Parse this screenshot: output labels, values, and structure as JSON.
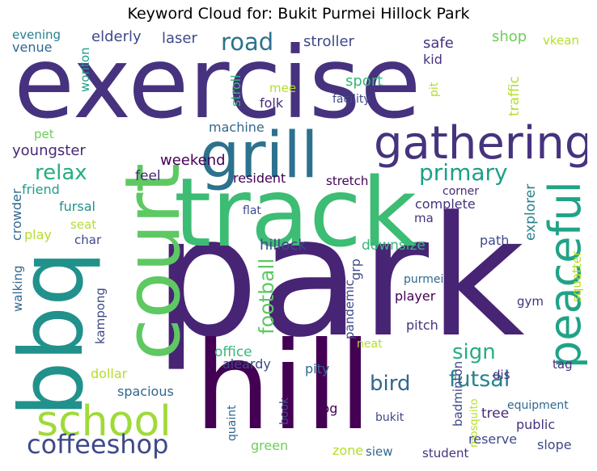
{
  "title": "Keyword Cloud for: Bukit Purmei Hillock Park",
  "palette": [
    "#440154",
    "#482878",
    "#3e4989",
    "#31688e",
    "#26828e",
    "#1f9e89",
    "#35b779",
    "#6ece58",
    "#b5de2b",
    "#fde725"
  ],
  "words": {
    "exercise": "exercise",
    "park": "park",
    "track": "track",
    "hill": "hill",
    "court": "court",
    "grill": "grill",
    "bbq": "bbq",
    "gathering": "gathering",
    "peaceful": "peaceful",
    "school": "school",
    "coffeeshop": "coffeeshop",
    "road": "road",
    "primary": "primary",
    "relax": "relax",
    "football": "football",
    "sign": "sign",
    "futsal": "futsal",
    "bird": "bird",
    "weekend": "weekend",
    "youngster": "youngster",
    "elderly": "elderly",
    "laser": "laser",
    "stroller": "stroller",
    "safe": "safe",
    "shop": "shop",
    "vkean": "vkean",
    "evening": "evening",
    "venue": "venue",
    "wonton": "wonton",
    "stroll": "stroll",
    "mee": "mee",
    "folk": "folk",
    "kid": "kid",
    "sport": "sport",
    "facility": "facility",
    "traffic": "traffic",
    "pit": "pit",
    "pet": "pet",
    "machine": "machine",
    "feel": "feel",
    "resident": "resident",
    "stretch": "stretch",
    "friend": "friend",
    "fursal": "fursal",
    "seat": "seat",
    "play": "play",
    "char": "char",
    "crowder": "crowder",
    "walking": "walking",
    "kampong": "kampong",
    "flat": "flat",
    "hillock": "hillock",
    "downsize": "downsize",
    "complete": "complete",
    "ma": "ma",
    "corner": "corner",
    "explorer": "explorer",
    "path": "path",
    "squatter": "squatter",
    "grp": "grp",
    "pandemic": "pandemic",
    "purmei": "purmei",
    "player": "player",
    "gym": "gym",
    "pitch": "pitch",
    "office": "office",
    "aleardy": "aleardy",
    "pity": "pity",
    "neat": "neat",
    "dollar": "dollar",
    "spacious": "spacious",
    "badminton": "badminton",
    "dis": "dis",
    "tag": "tag",
    "mosquito": "mosquito",
    "jog": "jog",
    "equipment": "equipment",
    "quaint": "quaint",
    "book": "book",
    "bukit": "bukit",
    "tree": "tree",
    "public": "public",
    "green": "green",
    "reserve": "reserve",
    "slope": "slope",
    "zone": "zone",
    "siew": "siew",
    "student": "student"
  }
}
